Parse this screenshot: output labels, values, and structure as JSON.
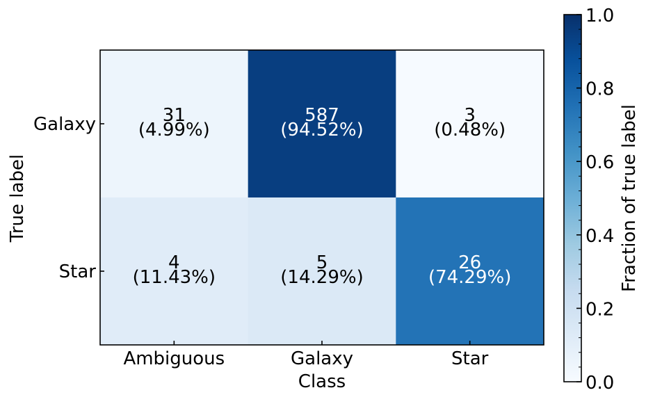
{
  "chart_data": {
    "type": "heatmap",
    "xlabel": "Class",
    "ylabel": "True label",
    "x_categories": [
      "Ambiguous",
      "Galaxy",
      "Star"
    ],
    "y_categories": [
      "Galaxy",
      "Star"
    ],
    "counts": [
      [
        31,
        587,
        3
      ],
      [
        4,
        5,
        26
      ]
    ],
    "percent_labels": [
      [
        "(4.99%)",
        "(94.52%)",
        "(0.48%)"
      ],
      [
        "(11.43%)",
        "(14.29%)",
        "(74.29%)"
      ]
    ],
    "fractions": [
      [
        0.0499,
        0.9452,
        0.0048
      ],
      [
        0.1143,
        0.1429,
        0.7429
      ]
    ],
    "colorbar": {
      "label": "Fraction of true label",
      "range": [
        0.0,
        1.0
      ],
      "ticks": [
        "0.0",
        "0.2",
        "0.4",
        "0.6",
        "0.8",
        "1.0"
      ],
      "colormap": "Blues"
    }
  }
}
